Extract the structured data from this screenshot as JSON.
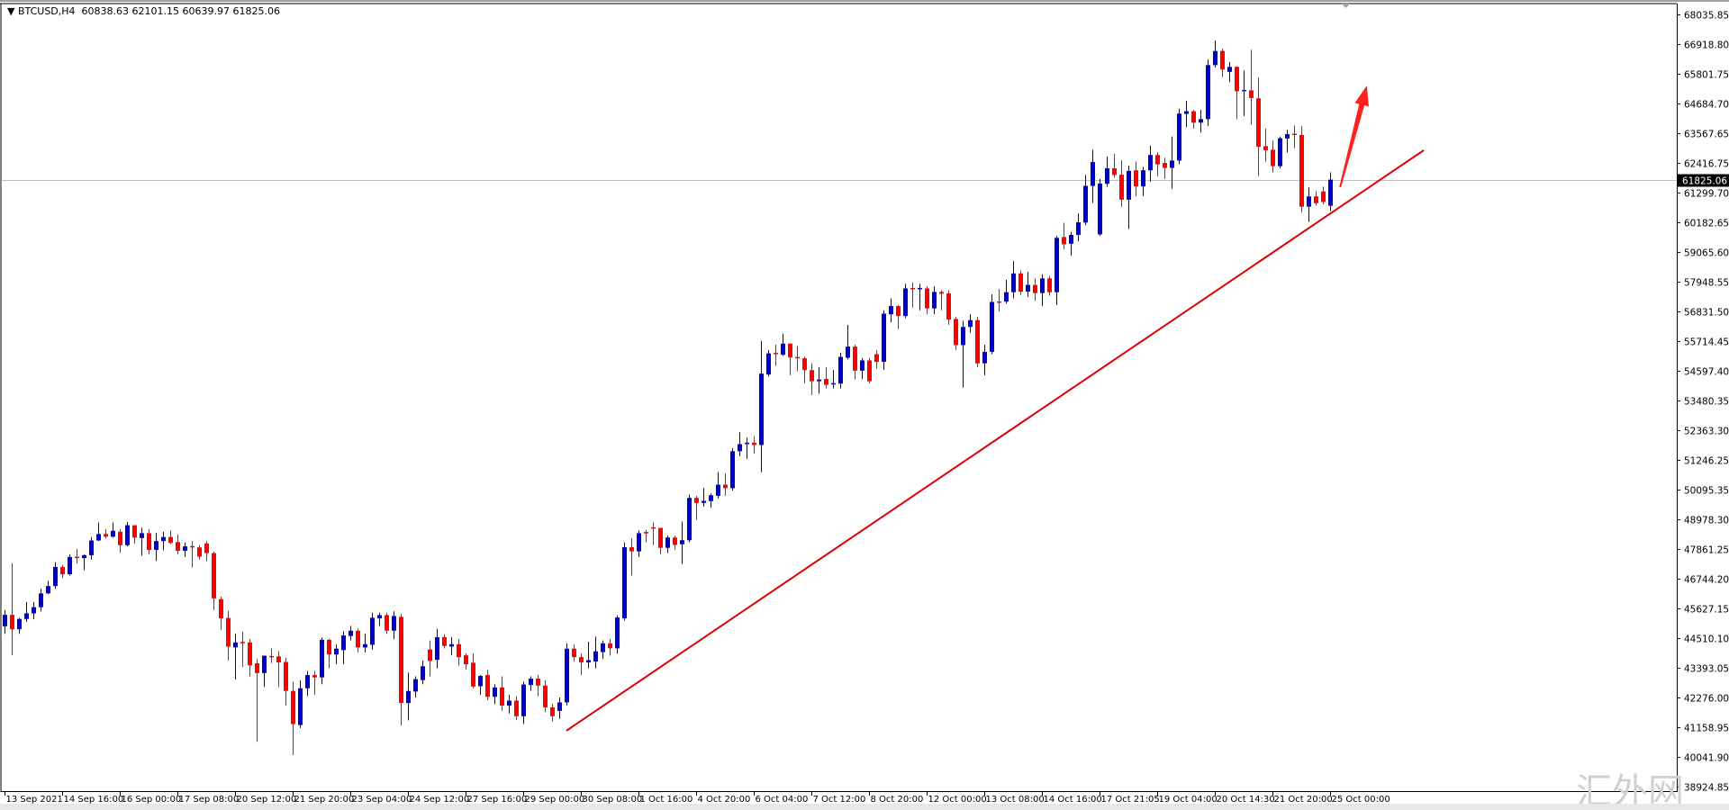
{
  "header": {
    "menu_icon": "triangle-down-icon",
    "symbol": "BTCUSD,H4",
    "ohlc": "60838.63 62101.15 60639.97 61825.06"
  },
  "watermark": "汇外网",
  "colors": {
    "bull": "#0000cc",
    "bear": "#ff0000",
    "bid_line": "#c0c0c0",
    "trendline": "#e00000",
    "arrow": "#ff2020"
  },
  "chart_data": {
    "type": "candlestick",
    "title": "",
    "symbol": "BTCUSD",
    "timeframe": "H4",
    "grid": false,
    "bid": 61825.06,
    "ylim": [
      38924.85,
      68035.85
    ],
    "y_ticks": [
      "68035.85",
      "66918.80",
      "65801.75",
      "64684.70",
      "63567.65",
      "62416.75",
      "61299.70",
      "60182.65",
      "59065.60",
      "57948.55",
      "56831.50",
      "55714.45",
      "54597.40",
      "53480.35",
      "52363.30",
      "51246.25",
      "50095.35",
      "48978.30",
      "47861.25",
      "46744.20",
      "45627.15",
      "44510.10",
      "43393.05",
      "42276.00",
      "41158.95",
      "40041.90",
      "38924.85"
    ],
    "x_ticks": [
      {
        "bar": 0,
        "label": "13 Sep 2021"
      },
      {
        "bar": 8,
        "label": "14 Sep 16:00"
      },
      {
        "bar": 16,
        "label": "16 Sep 00:00"
      },
      {
        "bar": 24,
        "label": "17 Sep 08:00"
      },
      {
        "bar": 32,
        "label": "20 Sep 12:00"
      },
      {
        "bar": 40,
        "label": "21 Sep 20:00"
      },
      {
        "bar": 48,
        "label": "23 Sep 04:00"
      },
      {
        "bar": 56,
        "label": "24 Sep 12:00"
      },
      {
        "bar": 64,
        "label": "27 Sep 16:00"
      },
      {
        "bar": 72,
        "label": "29 Sep 00:00"
      },
      {
        "bar": 80,
        "label": "30 Sep 08:00"
      },
      {
        "bar": 88,
        "label": "1 Oct 16:00"
      },
      {
        "bar": 96,
        "label": "4 Oct 20:00"
      },
      {
        "bar": 104,
        "label": "6 Oct 04:00"
      },
      {
        "bar": 112,
        "label": "7 Oct 12:00"
      },
      {
        "bar": 120,
        "label": "8 Oct 20:00"
      },
      {
        "bar": 128,
        "label": "12 Oct 00:00"
      },
      {
        "bar": 136,
        "label": "13 Oct 08:00"
      },
      {
        "bar": 144,
        "label": "14 Oct 16:00"
      },
      {
        "bar": 152,
        "label": "17 Oct 21:05"
      },
      {
        "bar": 160,
        "label": "19 Oct 04:00"
      },
      {
        "bar": 168,
        "label": "20 Oct 14:30"
      },
      {
        "bar": 176,
        "label": "21 Oct 20:00"
      },
      {
        "bar": 184,
        "label": "25 Oct 00:00"
      }
    ],
    "ohlc_fields": [
      "open",
      "high",
      "low",
      "close"
    ],
    "candles": [
      [
        44985,
        45600,
        44700,
        45417
      ],
      [
        45417,
        47370,
        43900,
        44874
      ],
      [
        44874,
        45300,
        44700,
        45262
      ],
      [
        45262,
        45900,
        45150,
        45472
      ],
      [
        45472,
        45900,
        45250,
        45705
      ],
      [
        45705,
        46400,
        45550,
        46226
      ],
      [
        46226,
        46700,
        46200,
        46503
      ],
      [
        46503,
        47400,
        46400,
        47223
      ],
      [
        47223,
        47300,
        46800,
        46946
      ],
      [
        46946,
        47700,
        46900,
        47599
      ],
      [
        47590,
        47900,
        47350,
        47555
      ],
      [
        47555,
        47700,
        47100,
        47666
      ],
      [
        47666,
        48350,
        47500,
        48220
      ],
      [
        48220,
        48900,
        48200,
        48463
      ],
      [
        48463,
        48650,
        48300,
        48364
      ],
      [
        48364,
        48900,
        48330,
        48585
      ],
      [
        48550,
        48650,
        47750,
        48042
      ],
      [
        48042,
        48920,
        48000,
        48796
      ],
      [
        48796,
        48800,
        48100,
        48330
      ],
      [
        48310,
        48700,
        47650,
        48497
      ],
      [
        48497,
        48650,
        47700,
        47865
      ],
      [
        47865,
        48500,
        47450,
        48198
      ],
      [
        48198,
        48550,
        47850,
        48353
      ],
      [
        48353,
        48600,
        48080,
        48131
      ],
      [
        48160,
        48450,
        47700,
        47832
      ],
      [
        47832,
        48150,
        47600,
        47998
      ],
      [
        47990,
        48200,
        47200,
        47943
      ],
      [
        47960,
        48050,
        47500,
        47610
      ],
      [
        48109,
        48200,
        47450,
        47743
      ],
      [
        47743,
        47800,
        45600,
        46038
      ],
      [
        46010,
        46100,
        44850,
        45284
      ],
      [
        45300,
        45570,
        43700,
        44221
      ],
      [
        44188,
        44700,
        42980,
        44376
      ],
      [
        44376,
        44780,
        43450,
        44360
      ],
      [
        44376,
        44500,
        43100,
        43512
      ],
      [
        43590,
        43750,
        40630,
        43224
      ],
      [
        43224,
        43877,
        42700,
        43877
      ],
      [
        43850,
        44150,
        43600,
        43840
      ],
      [
        43850,
        44050,
        42700,
        43623
      ],
      [
        43640,
        43800,
        42000,
        42549
      ],
      [
        42549,
        42900,
        40130,
        41297
      ],
      [
        41263,
        42950,
        41150,
        42648
      ],
      [
        42648,
        43300,
        42350,
        43146
      ],
      [
        43146,
        43300,
        42400,
        43058
      ],
      [
        43058,
        44560,
        42800,
        44476
      ],
      [
        44476,
        44520,
        43400,
        43922
      ],
      [
        43922,
        44300,
        43550,
        44143
      ],
      [
        44088,
        44800,
        43550,
        44642
      ],
      [
        44620,
        45000,
        44450,
        44819
      ],
      [
        44819,
        44900,
        44000,
        44188
      ],
      [
        44188,
        44700,
        44000,
        44310
      ],
      [
        44287,
        45500,
        44100,
        45307
      ],
      [
        45284,
        45500,
        45000,
        45406
      ],
      [
        45406,
        45500,
        44700,
        44819
      ],
      [
        44819,
        45550,
        44500,
        45373
      ],
      [
        45340,
        45450,
        41250,
        42094
      ],
      [
        42094,
        43244,
        41440,
        42548
      ],
      [
        42526,
        43100,
        42300,
        42991
      ],
      [
        42958,
        43700,
        42800,
        43479
      ],
      [
        44110,
        44450,
        43100,
        43678
      ],
      [
        43722,
        44890,
        43400,
        44575
      ],
      [
        44575,
        44680,
        44150,
        44243
      ],
      [
        44221,
        44580,
        43900,
        44310
      ],
      [
        44310,
        44500,
        43500,
        43822
      ],
      [
        43889,
        43960,
        43350,
        43556
      ],
      [
        43612,
        43960,
        42650,
        42714
      ],
      [
        42726,
        43150,
        42400,
        43113
      ],
      [
        43146,
        43350,
        42200,
        42327
      ],
      [
        42327,
        42800,
        42050,
        42681
      ],
      [
        42681,
        43100,
        41800,
        41994
      ],
      [
        41994,
        42400,
        41700,
        42183
      ],
      [
        42183,
        42350,
        41450,
        41596
      ],
      [
        41596,
        42900,
        41300,
        42792
      ],
      [
        42770,
        43100,
        42550,
        43014
      ],
      [
        43014,
        43150,
        42350,
        42748
      ],
      [
        42748,
        42950,
        41750,
        41928
      ],
      [
        41928,
        42050,
        41400,
        41596
      ],
      [
        41795,
        42300,
        41500,
        42116
      ],
      [
        42116,
        44350,
        42000,
        44143
      ],
      [
        44143,
        44300,
        43650,
        43822
      ],
      [
        43822,
        43950,
        43150,
        43623
      ],
      [
        43623,
        44400,
        43400,
        43711
      ],
      [
        43656,
        44600,
        43400,
        44044
      ],
      [
        44011,
        44450,
        43750,
        44343
      ],
      [
        44343,
        44500,
        43880,
        44155
      ],
      [
        44155,
        45400,
        43950,
        45318
      ],
      [
        45284,
        48150,
        45200,
        47965
      ],
      [
        47965,
        48300,
        46900,
        47810
      ],
      [
        47809,
        48600,
        47600,
        48496
      ],
      [
        48541,
        48620,
        48150,
        48486
      ],
      [
        48700,
        48900,
        48050,
        48695
      ],
      [
        48695,
        48700,
        47700,
        47942
      ],
      [
        47942,
        48400,
        47750,
        48330
      ],
      [
        48330,
        48400,
        47860,
        48053
      ],
      [
        48075,
        48940,
        47330,
        48230
      ],
      [
        48230,
        49950,
        48150,
        49825
      ],
      [
        49825,
        49900,
        49000,
        49637
      ],
      [
        49637,
        50200,
        49500,
        49714
      ],
      [
        49703,
        50000,
        49450,
        49925
      ],
      [
        49903,
        50800,
        49800,
        50324
      ],
      [
        50324,
        50750,
        49900,
        50193
      ],
      [
        50193,
        51700,
        50100,
        51586
      ],
      [
        51586,
        52300,
        51400,
        51852
      ],
      [
        51852,
        52100,
        51300,
        51908
      ],
      [
        51908,
        52150,
        51500,
        51819
      ],
      [
        51819,
        55750,
        50790,
        54511
      ],
      [
        54478,
        55400,
        54400,
        55275
      ],
      [
        55275,
        55600,
        54800,
        55270
      ],
      [
        55220,
        56020,
        55180,
        55641
      ],
      [
        55641,
        55650,
        54450,
        55120
      ],
      [
        55120,
        55550,
        54600,
        55087
      ],
      [
        55087,
        55150,
        54150,
        54644
      ],
      [
        54644,
        54900,
        53700,
        54223
      ],
      [
        54223,
        54750,
        53750,
        54289
      ],
      [
        54311,
        54750,
        53950,
        54090
      ],
      [
        54090,
        54650,
        53950,
        54134
      ],
      [
        54134,
        55300,
        53950,
        55142
      ],
      [
        55109,
        56350,
        55050,
        55530
      ],
      [
        55530,
        55600,
        54300,
        54622
      ],
      [
        54622,
        55100,
        54300,
        55009
      ],
      [
        55009,
        55100,
        54150,
        54223
      ],
      [
        55242,
        55400,
        54700,
        54954
      ],
      [
        54954,
        56900,
        54650,
        56770
      ],
      [
        56748,
        57350,
        56450,
        57058
      ],
      [
        57058,
        57100,
        56200,
        56682
      ],
      [
        56682,
        57900,
        56600,
        57723
      ],
      [
        57723,
        57950,
        57000,
        57720
      ],
      [
        57720,
        57900,
        56900,
        57723
      ],
      [
        57723,
        57800,
        56750,
        56970
      ],
      [
        56970,
        57800,
        56750,
        57590
      ],
      [
        57590,
        57650,
        56900,
        57524
      ],
      [
        57535,
        57650,
        56350,
        56549
      ],
      [
        56571,
        56650,
        55400,
        55585
      ],
      [
        55585,
        56500,
        53980,
        56272
      ],
      [
        56272,
        56750,
        56050,
        56527
      ],
      [
        56527,
        56650,
        54750,
        54898
      ],
      [
        54898,
        55600,
        54450,
        55330
      ],
      [
        55330,
        57500,
        55250,
        57213
      ],
      [
        57213,
        57700,
        56850,
        57191
      ],
      [
        57225,
        58050,
        57150,
        57579
      ],
      [
        57579,
        58750,
        57350,
        58288
      ],
      [
        58288,
        58400,
        57480,
        57601
      ],
      [
        57601,
        58350,
        57400,
        57856
      ],
      [
        57856,
        58100,
        57250,
        57546
      ],
      [
        57546,
        58250,
        57050,
        58100
      ],
      [
        58100,
        58200,
        57450,
        57579
      ],
      [
        57579,
        59700,
        57100,
        59628
      ],
      [
        59661,
        60200,
        59200,
        59385
      ],
      [
        59407,
        59850,
        58950,
        59739
      ],
      [
        59739,
        60550,
        59500,
        60215
      ],
      [
        60204,
        62000,
        60100,
        61589
      ],
      [
        61589,
        62950,
        60950,
        62486
      ],
      [
        59761,
        61850,
        59700,
        61677
      ],
      [
        61666,
        62700,
        61550,
        62253
      ],
      [
        62253,
        62800,
        61900,
        61999
      ],
      [
        62010,
        62550,
        60800,
        61068
      ],
      [
        61068,
        62350,
        59960,
        62154
      ],
      [
        62176,
        62500,
        61200,
        61567
      ],
      [
        61567,
        62300,
        61200,
        62176
      ],
      [
        62176,
        63100,
        61750,
        62752
      ],
      [
        62752,
        62850,
        61950,
        62398
      ],
      [
        62453,
        62650,
        61850,
        62265
      ],
      [
        62265,
        63450,
        61480,
        62542
      ],
      [
        62542,
        64500,
        62400,
        64314
      ],
      [
        64303,
        64800,
        63800,
        64403
      ],
      [
        64403,
        64450,
        63750,
        63971
      ],
      [
        63971,
        64450,
        63600,
        64104
      ],
      [
        64104,
        66350,
        63850,
        66142
      ],
      [
        66142,
        67070,
        66050,
        66674
      ],
      [
        66674,
        66750,
        65700,
        65976
      ],
      [
        65887,
        66260,
        65500,
        66075
      ],
      [
        66075,
        66100,
        64100,
        65156
      ],
      [
        65180,
        65940,
        64225,
        65189
      ],
      [
        65189,
        66720,
        63890,
        64901
      ],
      [
        64890,
        65670,
        61960,
        63062
      ],
      [
        63085,
        63750,
        62500,
        62930
      ],
      [
        62952,
        63300,
        62100,
        62331
      ],
      [
        62331,
        63450,
        62250,
        63384
      ],
      [
        63373,
        63700,
        62850,
        63539
      ],
      [
        63539,
        63870,
        63010,
        63530
      ],
      [
        63506,
        63840,
        60580,
        60803
      ],
      [
        60803,
        61530,
        60230,
        61191
      ],
      [
        61191,
        61380,
        60850,
        60936
      ],
      [
        61379,
        61560,
        60900,
        60980
      ],
      [
        60838.63,
        62101.15,
        60639.97,
        61825.06
      ]
    ],
    "annotations": {
      "trendline": {
        "from_bar": 78,
        "from_price": 41050,
        "to_bar": 197,
        "to_price": 62930
      },
      "arrow": {
        "from_bar": 185.4,
        "from_price": 61540,
        "to_bar": 189.1,
        "to_price": 65370
      }
    }
  }
}
